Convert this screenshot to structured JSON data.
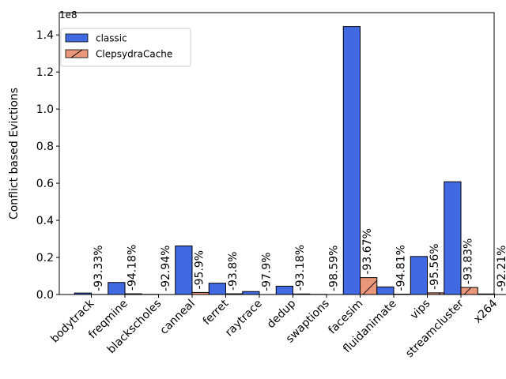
{
  "chart_data": {
    "type": "bar",
    "ylabel": "Conflict based Evictions",
    "y_multiplier_label": "1e8",
    "ylim": [
      0,
      1.52
    ],
    "yticks": [
      "0.0",
      "0.2",
      "0.4",
      "0.6",
      "0.8",
      "1.0",
      "1.2",
      "1.4"
    ],
    "categories": [
      "bodytrack",
      "freqmine",
      "blackscholes",
      "canneal",
      "ferret",
      "raytrace",
      "dedup",
      "swaptions",
      "facesim",
      "fluidanimate",
      "vips",
      "streamcluster",
      "x264"
    ],
    "series": [
      {
        "name": "classic",
        "color": "#4169e1",
        "values": [
          0.008,
          0.065,
          0.001,
          0.262,
          0.061,
          0.016,
          0.045,
          0.001,
          1.445,
          0.041,
          0.205,
          0.608,
          0.003
        ]
      },
      {
        "name": "ClepsydraCache",
        "color": "#e9967a",
        "hatch": "diagonal",
        "values": [
          0.0005,
          0.004,
          0.0001,
          0.011,
          0.004,
          0.0003,
          0.003,
          1e-05,
          0.091,
          0.002,
          0.009,
          0.038,
          0.0002
        ]
      }
    ],
    "annotations": [
      "-93.33%",
      "-94.18%",
      "-92.94%",
      "-95.9%",
      "-93.8%",
      "-97.9%",
      "-93.18%",
      "-98.59%",
      "-93.67%",
      "-94.81%",
      "-95.56%",
      "-93.83%",
      "-92.21%"
    ],
    "legend_position": "top-left",
    "grid": false
  }
}
